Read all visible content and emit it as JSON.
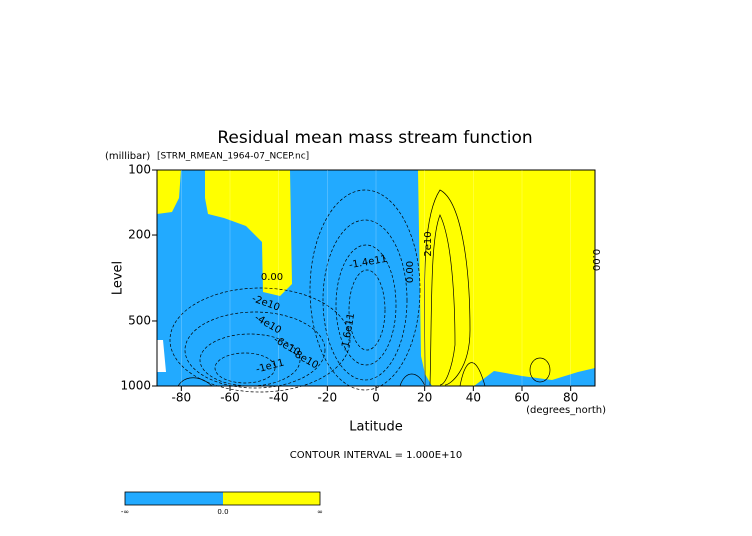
{
  "chart_data": {
    "type": "contour",
    "title": "Residual mean mass stream function",
    "subtitle": "[STRM_RMEAN_1964-07_NCEP.nc]",
    "y_unit": "(millibar)",
    "x_unit": "(degrees_north)",
    "xlabel": "Latitude",
    "ylabel": "Level",
    "xlim": [
      -90,
      90
    ],
    "xticks": [
      -80,
      -60,
      -40,
      -20,
      0,
      20,
      40,
      60,
      80
    ],
    "ylim": [
      1000,
      100
    ],
    "yticks": [
      100,
      200,
      500,
      1000
    ],
    "log_y": true,
    "positive_color": "#ffff00",
    "negative_color": "#22aaff",
    "contour_labels": [
      "0.00",
      "-2e10",
      "-4e10",
      "-6e10",
      "-8e10",
      "-1e11",
      "-1.4e11",
      "-1.6e11",
      "2e10",
      "0.00",
      "0.00"
    ],
    "annotation": "CONTOUR INTERVAL = 1.000E+10",
    "colorbar_labels": [
      "-∞",
      "0.0",
      "∞"
    ]
  }
}
